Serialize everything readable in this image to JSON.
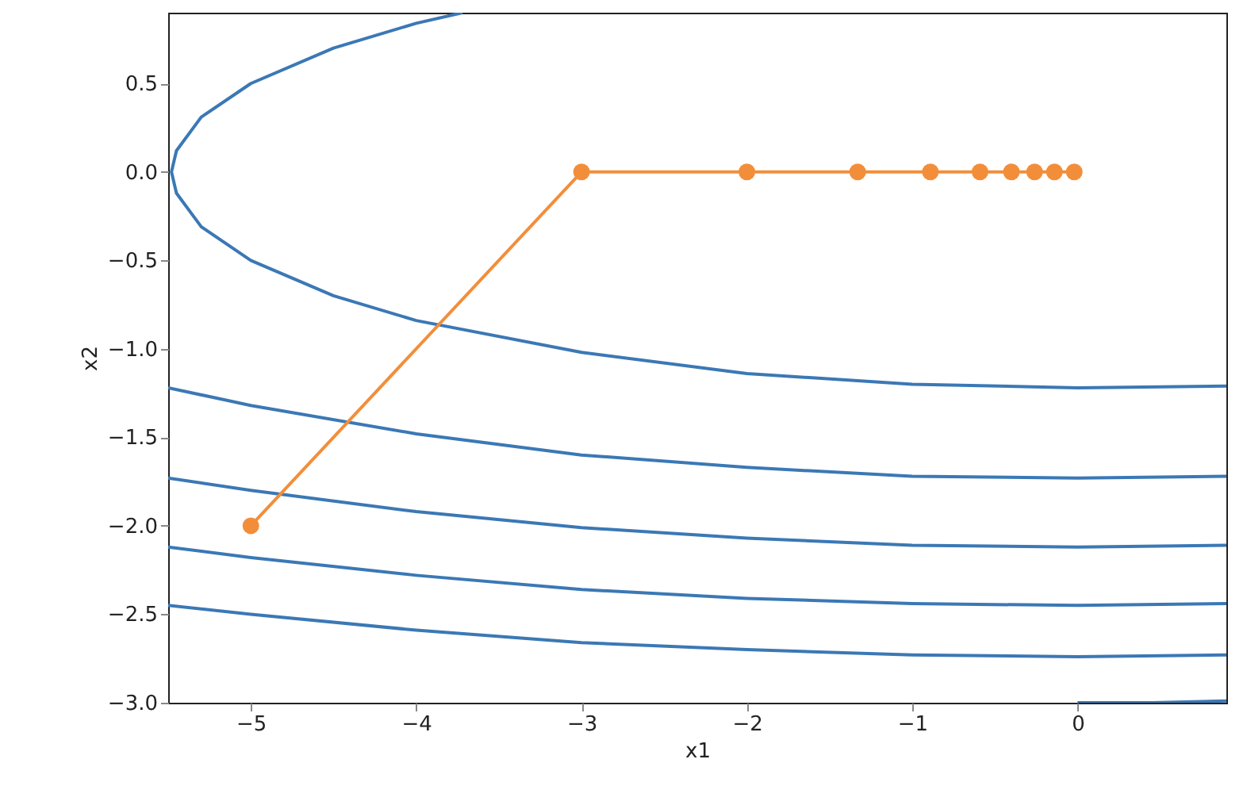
{
  "chart_data": {
    "type": "line",
    "xlabel": "x1",
    "ylabel": "x2",
    "xlim": [
      -5.5,
      0.9
    ],
    "ylim": [
      -3.0,
      0.9
    ],
    "xticks": [
      {
        "value": -5,
        "label": "−5"
      },
      {
        "value": -4,
        "label": "−4"
      },
      {
        "value": -3,
        "label": "−3"
      },
      {
        "value": -2,
        "label": "−2"
      },
      {
        "value": -1,
        "label": "−1"
      },
      0
    ],
    "yticks": [
      {
        "value": -3,
        "label": "−3.0"
      },
      {
        "value": -2.5,
        "label": "−2.5"
      },
      {
        "value": -2,
        "label": "−2.0"
      },
      {
        "value": -1.5,
        "label": "−1.5"
      },
      {
        "value": -1,
        "label": "−1.0"
      },
      {
        "value": -0.5,
        "label": "−0.5"
      },
      {
        "value": 0,
        "label": "0.0"
      },
      0.5
    ],
    "grid": false,
    "series": [
      {
        "color": "#3b78b5",
        "marker": "none",
        "x": [
          -3.72,
          -4,
          -4.5,
          -5,
          -5.3,
          -5.45,
          -5.48,
          -5.45,
          -5.3,
          -5,
          -4.5,
          -4,
          -3,
          -2,
          -1,
          0,
          0.9
        ],
        "values": [
          0.9,
          0.84,
          0.7,
          0.5,
          0.31,
          0.12,
          0.0,
          -0.12,
          -0.31,
          -0.5,
          -0.7,
          -0.84,
          -1.02,
          -1.14,
          -1.2,
          -1.22,
          -1.21
        ]
      },
      {
        "color": "#3b78b5",
        "marker": "none",
        "x": [
          -5.5,
          -5,
          -4,
          -3,
          -2,
          -1,
          0,
          0.9
        ],
        "values": [
          -1.22,
          -1.32,
          -1.48,
          -1.6,
          -1.67,
          -1.72,
          -1.73,
          -1.72
        ]
      },
      {
        "color": "#3b78b5",
        "marker": "none",
        "x": [
          -5.5,
          -5,
          -4,
          -3,
          -2,
          -1,
          0,
          0.9
        ],
        "values": [
          -1.73,
          -1.8,
          -1.92,
          -2.01,
          -2.07,
          -2.11,
          -2.12,
          -2.11
        ]
      },
      {
        "color": "#3b78b5",
        "marker": "none",
        "x": [
          -5.5,
          -5,
          -4,
          -3,
          -2,
          -1,
          0,
          0.9
        ],
        "values": [
          -2.12,
          -2.18,
          -2.28,
          -2.36,
          -2.41,
          -2.44,
          -2.45,
          -2.44
        ]
      },
      {
        "color": "#3b78b5",
        "marker": "none",
        "x": [
          -5.5,
          -5,
          -4,
          -3,
          -2,
          -1,
          0,
          0.9
        ],
        "values": [
          -2.45,
          -2.5,
          -2.59,
          -2.66,
          -2.7,
          -2.73,
          -2.74,
          -2.73
        ]
      },
      {
        "color": "#3b78b5",
        "marker": "none",
        "x": [
          0,
          0.45,
          0.9
        ],
        "values": [
          -3.0,
          -3.0,
          -2.99
        ]
      },
      {
        "color": "#f28e3a",
        "marker": "circle",
        "x": [
          -5,
          -3,
          -2,
          -1.33,
          -0.89,
          -0.59,
          -0.4,
          -0.26,
          -0.14,
          -0.02
        ],
        "values": [
          -2,
          0,
          0,
          0,
          0,
          0,
          0,
          0,
          0,
          0
        ]
      }
    ]
  }
}
